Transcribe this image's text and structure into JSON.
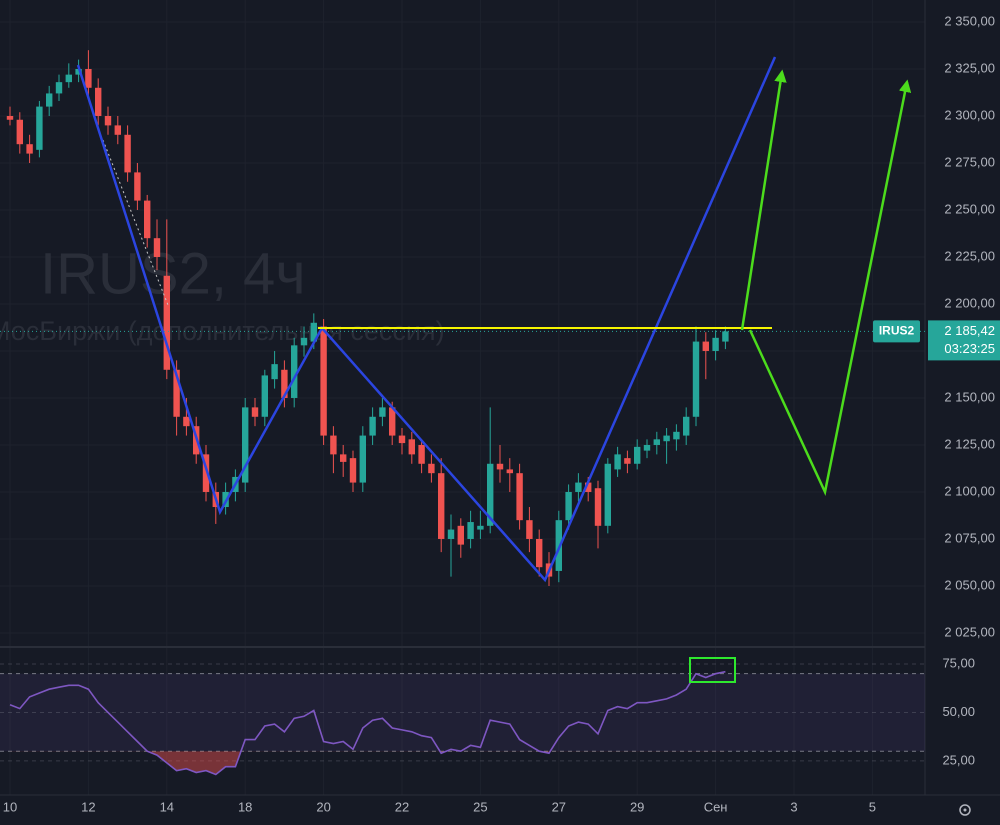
{
  "chart_data": [
    {
      "type": "candlestick",
      "watermark_title": "IRUS2, 4ч",
      "watermark_subtitle": "МосБиржи (дополнительная сессия)",
      "categories": [
        "10",
        null,
        null,
        null,
        null,
        null,
        null,
        null,
        "12",
        null,
        null,
        null,
        null,
        null,
        null,
        null,
        "14",
        null,
        null,
        null,
        null,
        null,
        null,
        null,
        "18",
        null,
        null,
        null,
        null,
        null,
        null,
        null,
        "20",
        null,
        null,
        null,
        null,
        null,
        null,
        null,
        "22",
        null,
        null,
        null,
        null,
        null,
        null,
        null,
        "25",
        null,
        null,
        null,
        null,
        null,
        null,
        null,
        "27",
        null,
        null,
        null,
        null,
        null,
        null,
        null,
        "29",
        null,
        null,
        null,
        null,
        null,
        null,
        null,
        "Сен",
        null,
        null,
        null,
        null,
        null,
        null,
        null,
        "3",
        null,
        null,
        null,
        null,
        null,
        null,
        null,
        "5",
        null
      ],
      "open": [
        2300,
        2298,
        2285,
        2282,
        2305,
        2312,
        2318,
        2322,
        2325,
        2315,
        2300,
        2295,
        2290,
        2270,
        2255,
        2235,
        2215,
        2165,
        2140,
        2135,
        2120,
        2100,
        2092,
        2100,
        2105,
        2145,
        2140,
        2160,
        2165,
        2150,
        2178,
        2180,
        2188,
        2130,
        2120,
        2118,
        2105,
        2130,
        2140,
        2145,
        2130,
        2128,
        2125,
        2115,
        2110,
        2075,
        2082,
        2075,
        2080,
        2082,
        2115,
        2112,
        2110,
        2085,
        2075,
        2062,
        2058,
        2085,
        2100,
        2105,
        2102,
        2082,
        2112,
        2118,
        2115,
        2122,
        2125,
        2127,
        2128,
        2130,
        2140,
        2180,
        2175,
        2180,
        null,
        null,
        null,
        null,
        null,
        null,
        null,
        null,
        null,
        null,
        null,
        null,
        null,
        null,
        null,
        null
      ],
      "high": [
        2305,
        2302,
        2290,
        2308,
        2316,
        2322,
        2328,
        2330,
        2335,
        2320,
        2305,
        2300,
        2295,
        2275,
        2258,
        2245,
        2245,
        2170,
        2150,
        2140,
        2125,
        2105,
        2105,
        2112,
        2150,
        2150,
        2165,
        2175,
        2170,
        2182,
        2188,
        2195,
        2192,
        2135,
        2125,
        2122,
        2135,
        2145,
        2150,
        2148,
        2134,
        2132,
        2128,
        2120,
        2118,
        2088,
        2086,
        2090,
        2090,
        2145,
        2125,
        2118,
        2115,
        2092,
        2080,
        2068,
        2090,
        2104,
        2110,
        2108,
        2106,
        2118,
        2124,
        2122,
        2128,
        2128,
        2132,
        2134,
        2136,
        2145,
        2188,
        2185,
        2186,
        2188,
        null,
        null,
        null,
        null,
        null,
        null,
        null,
        null,
        null,
        null,
        null,
        null,
        null,
        null,
        null,
        null
      ],
      "low": [
        2295,
        2280,
        2275,
        2278,
        2300,
        2308,
        2315,
        2318,
        2310,
        2295,
        2290,
        2285,
        2265,
        2250,
        2230,
        2218,
        2160,
        2130,
        2130,
        2115,
        2095,
        2083,
        2088,
        2095,
        2100,
        2135,
        2135,
        2155,
        2145,
        2145,
        2172,
        2176,
        2125,
        2110,
        2108,
        2100,
        2100,
        2125,
        2135,
        2125,
        2120,
        2115,
        2110,
        2105,
        2068,
        2055,
        2065,
        2070,
        2075,
        2078,
        2105,
        2100,
        2080,
        2068,
        2055,
        2050,
        2052,
        2080,
        2095,
        2095,
        2070,
        2078,
        2108,
        2110,
        2112,
        2118,
        2120,
        2115,
        2122,
        2125,
        2135,
        2160,
        2170,
        2176,
        null,
        null,
        null,
        null,
        null,
        null,
        null,
        null,
        null,
        null,
        null,
        null,
        null,
        null,
        null,
        null
      ],
      "close": [
        2298,
        2285,
        2280,
        2305,
        2312,
        2318,
        2322,
        2325,
        2315,
        2300,
        2295,
        2290,
        2270,
        2255,
        2235,
        2225,
        2165,
        2140,
        2135,
        2120,
        2100,
        2092,
        2100,
        2108,
        2145,
        2140,
        2162,
        2168,
        2150,
        2178,
        2182,
        2190,
        2130,
        2120,
        2116,
        2105,
        2130,
        2140,
        2145,
        2130,
        2126,
        2120,
        2115,
        2110,
        2075,
        2080,
        2072,
        2084,
        2082,
        2115,
        2112,
        2110,
        2085,
        2075,
        2060,
        2055,
        2085,
        2100,
        2105,
        2100,
        2082,
        2115,
        2120,
        2115,
        2124,
        2125,
        2128,
        2130,
        2132,
        2140,
        2180,
        2175,
        2182,
        2185.42,
        null,
        null,
        null,
        null,
        null,
        null,
        null,
        null,
        null,
        null,
        null,
        null,
        null,
        null,
        null,
        null
      ],
      "up_color": "#26a69a",
      "down_color": "#ef5350",
      "ylim": [
        2018.6,
        2361.7
      ],
      "yticks": [
        {
          "value": 2025,
          "label": "2 025,00"
        },
        {
          "value": 2050,
          "label": "2 050,00"
        },
        {
          "value": 2075,
          "label": "2 075,00"
        },
        {
          "value": 2100,
          "label": "2 100,00"
        },
        {
          "value": 2125,
          "label": "2 125,00"
        },
        {
          "value": 2150,
          "label": "2 150,00"
        },
        {
          "value": 2175,
          "label": "2 175,00"
        },
        {
          "value": 2200,
          "label": "2 200,00"
        },
        {
          "value": 2225,
          "label": "2 225,00"
        },
        {
          "value": 2250,
          "label": "2 250,00"
        },
        {
          "value": 2275,
          "label": "2 275,00"
        },
        {
          "value": 2300,
          "label": "2 300,00"
        },
        {
          "value": 2325,
          "label": "2 325,00"
        },
        {
          "value": 2350,
          "label": "2 350,00"
        }
      ],
      "grid": true,
      "ticker": "IRUS2",
      "last_price": {
        "value": 2185.42,
        "label": "2 185,42"
      },
      "countdown": "03:23:25"
    },
    {
      "type": "line",
      "values": [
        54,
        52,
        58,
        60,
        62,
        63,
        64,
        64,
        62,
        55,
        50,
        45,
        40,
        35,
        30,
        28,
        24,
        20,
        21,
        19,
        20,
        18,
        22,
        22,
        36,
        36,
        43,
        44,
        40,
        47,
        48,
        51,
        35,
        34,
        35,
        31,
        42,
        46,
        47,
        42,
        41,
        40,
        38,
        37,
        29,
        31,
        30,
        33,
        32,
        46,
        45,
        44,
        36,
        33,
        30,
        29,
        37,
        43,
        45,
        44,
        39,
        51,
        53,
        52,
        55,
        55,
        56,
        57,
        59,
        62,
        70,
        68,
        70,
        71,
        null,
        null,
        null,
        null,
        null,
        null,
        null,
        null,
        null,
        null,
        null,
        null,
        null,
        null,
        null,
        null
      ],
      "color": "#7e57c2",
      "ylim": [
        10,
        82.2
      ],
      "yticks": [
        {
          "value": 25,
          "label": "25,00"
        },
        {
          "value": 50,
          "label": "50,00"
        },
        {
          "value": 75,
          "label": "75,00"
        }
      ],
      "bands": [
        30,
        70
      ]
    }
  ]
}
